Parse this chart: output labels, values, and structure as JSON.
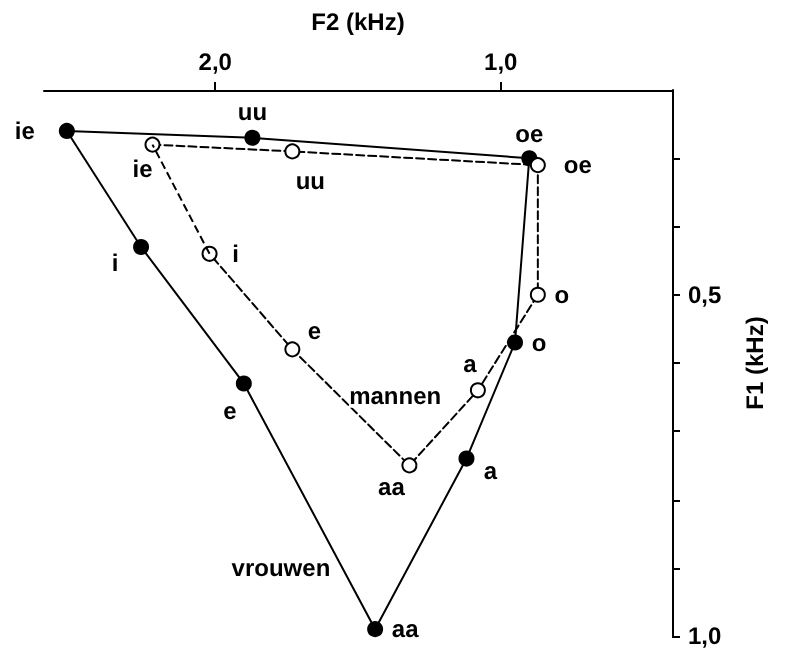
{
  "chart_data": {
    "type": "line",
    "xlabel": "F2 (kHz)",
    "ylabel": "F1 (kHz)",
    "xlim": [
      2.6,
      0.4
    ],
    "xticks": [
      {
        "value": 2,
        "label": "2,0"
      },
      {
        "value": 1,
        "label": "1,0"
      }
    ],
    "ylim": [
      1.0,
      0.2
    ],
    "yticks": [
      {
        "value": 0.3,
        "label": null
      },
      {
        "value": 0.4,
        "label": null
      },
      {
        "value": 0.5,
        "label": "0,5"
      },
      {
        "value": 0.6,
        "label": null
      },
      {
        "value": 0.7,
        "label": null
      },
      {
        "value": 0.8,
        "label": null
      },
      {
        "value": 0.9,
        "label": null
      },
      {
        "value": 1.0,
        "label": "1,0"
      }
    ],
    "marker": "circle",
    "grid": false,
    "legend": false,
    "series": [
      {
        "name": "vrouwen",
        "color": "#000000",
        "line_style": "solid",
        "x": [
          2.52,
          1.87,
          0.9,
          0.95,
          1.12,
          1.44,
          1.9,
          2.26
        ],
        "values": [
          0.26,
          0.27,
          0.3,
          0.57,
          0.74,
          0.99,
          0.63,
          0.43
        ]
      },
      {
        "name": "mannen",
        "color": "#000000",
        "line_style": "dashed",
        "x": [
          2.22,
          1.73,
          0.87,
          0.87,
          1.08,
          1.32,
          1.73,
          2.02
        ],
        "values": [
          0.28,
          0.29,
          0.31,
          0.5,
          0.64,
          0.75,
          0.58,
          0.44
        ]
      }
    ],
    "annotations": [
      {
        "text": "ie",
        "x": 2.52,
        "y": 0.26
      },
      {
        "text": "uu",
        "x": 1.87,
        "y": 0.27
      },
      {
        "text": "oe",
        "x": 0.9,
        "y": 0.3
      },
      {
        "text": "o",
        "x": 0.95,
        "y": 0.57
      },
      {
        "text": "a",
        "x": 1.12,
        "y": 0.74
      },
      {
        "text": "aa",
        "x": 1.44,
        "y": 0.99
      },
      {
        "text": "e",
        "x": 1.9,
        "y": 0.63
      },
      {
        "text": "i",
        "x": 2.26,
        "y": 0.43
      },
      {
        "text": "ie",
        "x": 2.22,
        "y": 0.28
      },
      {
        "text": "uu",
        "x": 1.73,
        "y": 0.29
      },
      {
        "text": "oe",
        "x": 0.87,
        "y": 0.31
      },
      {
        "text": "o",
        "x": 0.87,
        "y": 0.5
      },
      {
        "text": "a",
        "x": 1.08,
        "y": 0.64
      },
      {
        "text": "aa",
        "x": 1.32,
        "y": 0.75
      },
      {
        "text": "e",
        "x": 1.73,
        "y": 0.58
      },
      {
        "text": "i",
        "x": 2.02,
        "y": 0.44
      }
    ]
  }
}
